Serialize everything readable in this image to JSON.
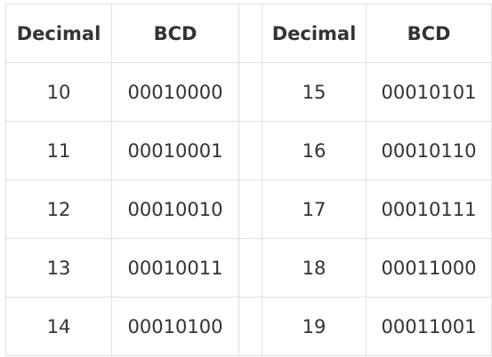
{
  "table": {
    "headers": [
      "Decimal",
      "BCD",
      "Decimal",
      "BCD"
    ],
    "rows": [
      [
        "10",
        "00010000",
        "15",
        "00010101"
      ],
      [
        "11",
        "00010001",
        "16",
        "00010110"
      ],
      [
        "12",
        "00010010",
        "17",
        "00010111"
      ],
      [
        "13",
        "00010011",
        "18",
        "00011000"
      ],
      [
        "14",
        "00010100",
        "19",
        "00011001"
      ]
    ]
  }
}
